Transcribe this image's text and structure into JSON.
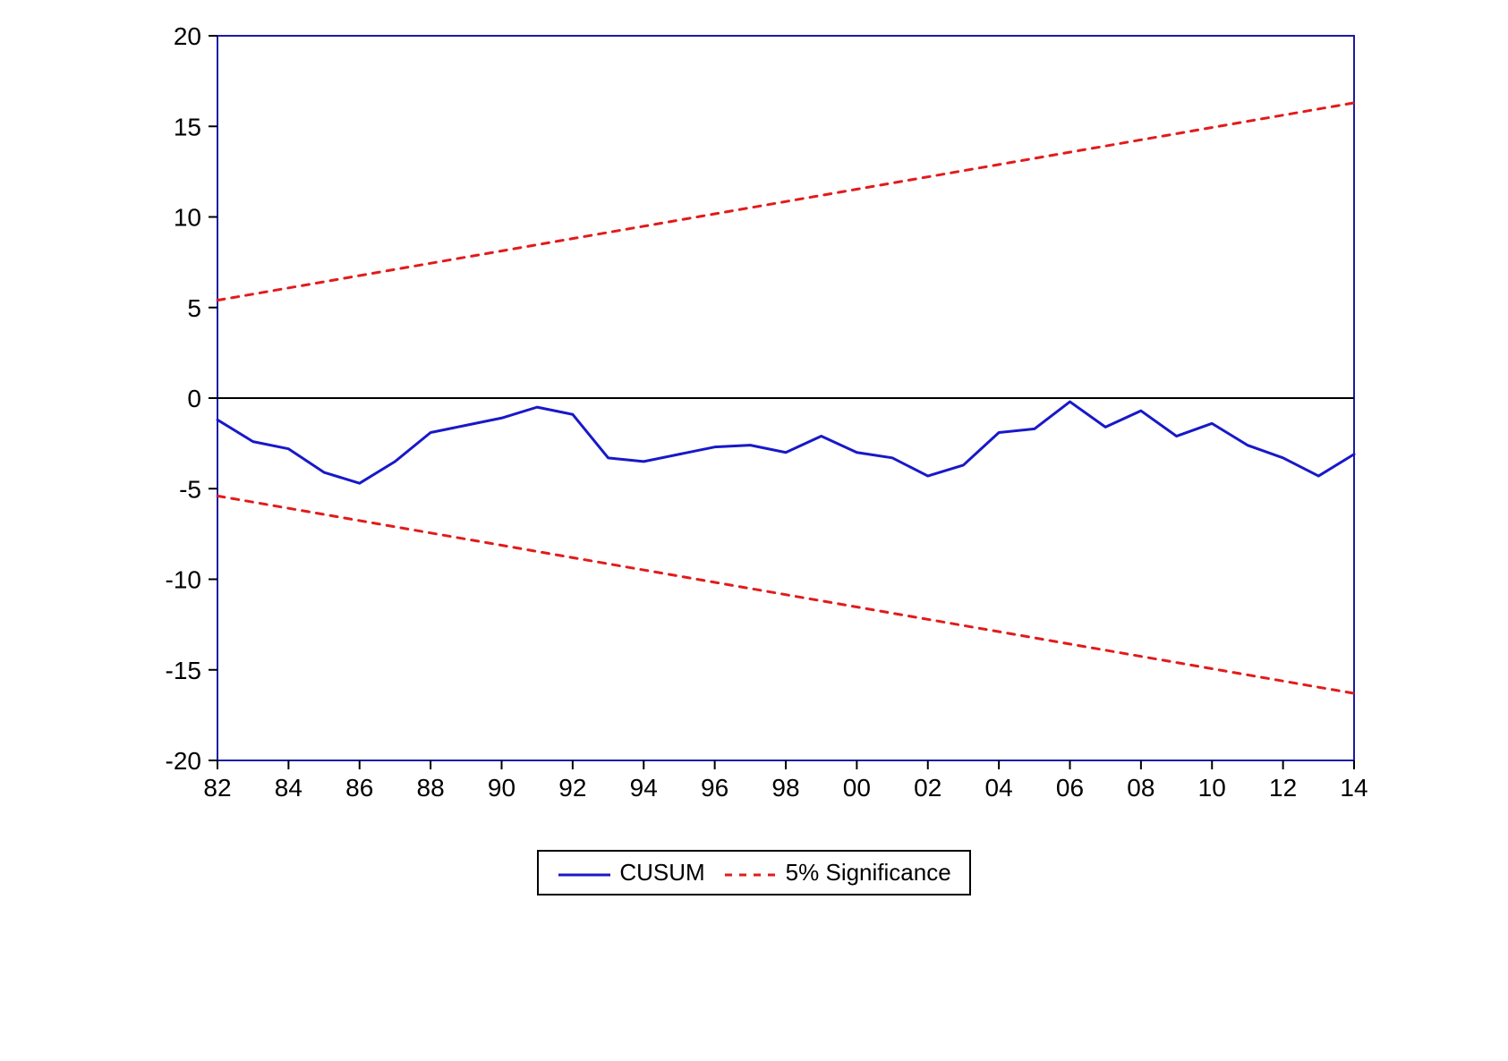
{
  "chart": {
    "type": "line",
    "background_color": "#ffffff",
    "frame_color": "#1a1aa6",
    "frame_width": 2,
    "zero_line_color": "#000000",
    "zero_line_width": 2,
    "tick_color": "#000000",
    "tick_label_fontsize": 28,
    "tick_label_color": "#000000",
    "x": {
      "min": 82,
      "max": 114,
      "tick_start": 82,
      "tick_step": 2,
      "labels": [
        "82",
        "84",
        "86",
        "88",
        "90",
        "92",
        "94",
        "96",
        "98",
        "00",
        "02",
        "04",
        "06",
        "08",
        "10",
        "12",
        "14"
      ]
    },
    "y": {
      "min": -20,
      "max": 20,
      "tick_step": 5
    },
    "series": [
      {
        "name": "CUSUM",
        "color": "#1818c9",
        "width": 3,
        "dash": "none",
        "x": [
          82,
          83,
          84,
          85,
          86,
          87,
          88,
          89,
          90,
          91,
          92,
          93,
          94,
          95,
          96,
          97,
          98,
          99,
          100,
          101,
          102,
          103,
          104,
          105,
          106,
          107,
          108,
          109,
          110,
          111,
          112,
          113,
          114
        ],
        "y": [
          -1.2,
          -2.4,
          -2.8,
          -4.1,
          -4.7,
          -3.5,
          -1.9,
          -1.5,
          -1.1,
          -0.5,
          -0.9,
          -3.3,
          -3.5,
          -3.1,
          -2.7,
          -2.6,
          -3.0,
          -2.1,
          -3.0,
          -3.3,
          -4.3,
          -3.7,
          -1.9,
          -1.7,
          -0.2,
          -1.6,
          -0.7,
          -2.1,
          -1.4,
          -2.6,
          -3.3,
          -4.3,
          -3.1
        ]
      },
      {
        "name": "5% Significance Upper",
        "color": "#e21b1b",
        "width": 3,
        "dash": "8,8",
        "x": [
          82,
          114
        ],
        "y": [
          5.4,
          16.3
        ]
      },
      {
        "name": "5% Significance Lower",
        "color": "#e21b1b",
        "width": 3,
        "dash": "8,8",
        "x": [
          82,
          114
        ],
        "y": [
          -5.4,
          -16.3
        ]
      }
    ],
    "legend": {
      "border_color": "#000000",
      "border_width": 2,
      "items": [
        {
          "label": "CUSUM",
          "color": "#1818c9",
          "dash": "none",
          "width": 3
        },
        {
          "label": "5% Significance",
          "color": "#e21b1b",
          "dash": "8,8",
          "width": 3
        }
      ]
    }
  }
}
